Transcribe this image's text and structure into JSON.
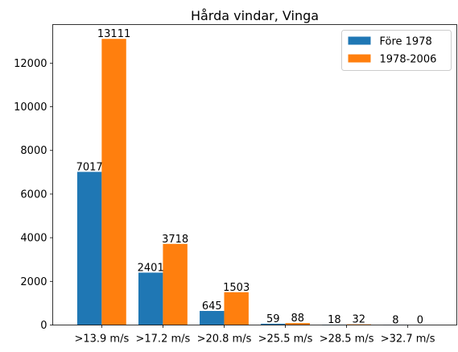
{
  "chart_data": {
    "type": "bar",
    "title": "Hårda vindar, Vinga",
    "xlabel": "",
    "ylabel": "",
    "categories": [
      ">13.9 m/s",
      ">17.2 m/s",
      ">20.8 m/s",
      ">25.5 m/s",
      ">28.5 m/s",
      ">32.7 m/s"
    ],
    "series": [
      {
        "name": "Före 1978",
        "color": "#1f77b4",
        "values": [
          7017,
          2401,
          645,
          59,
          18,
          8
        ]
      },
      {
        "name": "1978-2006",
        "color": "#ff7f0e",
        "values": [
          13111,
          3718,
          1503,
          88,
          32,
          0
        ]
      }
    ],
    "ylim": [
      0,
      13766
    ],
    "yticks": [
      0,
      2000,
      4000,
      6000,
      8000,
      10000,
      12000
    ],
    "grid": false,
    "legend_position": "top-right"
  }
}
